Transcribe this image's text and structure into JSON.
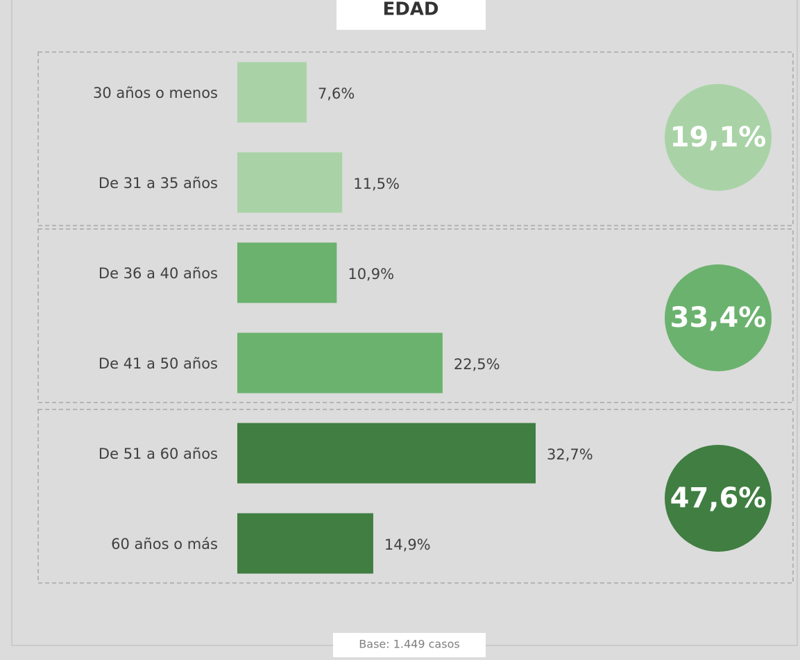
{
  "chart_data": {
    "type": "bar",
    "title": "EDAD",
    "footnote": "Base: 1.449 casos",
    "categories": [
      "30 años o menos",
      "De 31 a 35 años",
      "De 36 a 40 años",
      "De 41 a 50 años",
      "De 51 a 60 años",
      "60 años o más"
    ],
    "values": [
      7.6,
      11.5,
      10.9,
      22.5,
      32.7,
      14.9
    ],
    "value_labels": [
      "7,6%",
      "11,5%",
      "10,9%",
      "22,5%",
      "32,7%",
      "14,9%"
    ],
    "groups": [
      {
        "total": 19.1,
        "total_label": "19,1%",
        "color": "#a9d3a6"
      },
      {
        "total": 33.4,
        "total_label": "33,4%",
        "color": "#6bb26e"
      },
      {
        "total": 47.6,
        "total_label": "47,6%",
        "color": "#407e42"
      }
    ]
  }
}
